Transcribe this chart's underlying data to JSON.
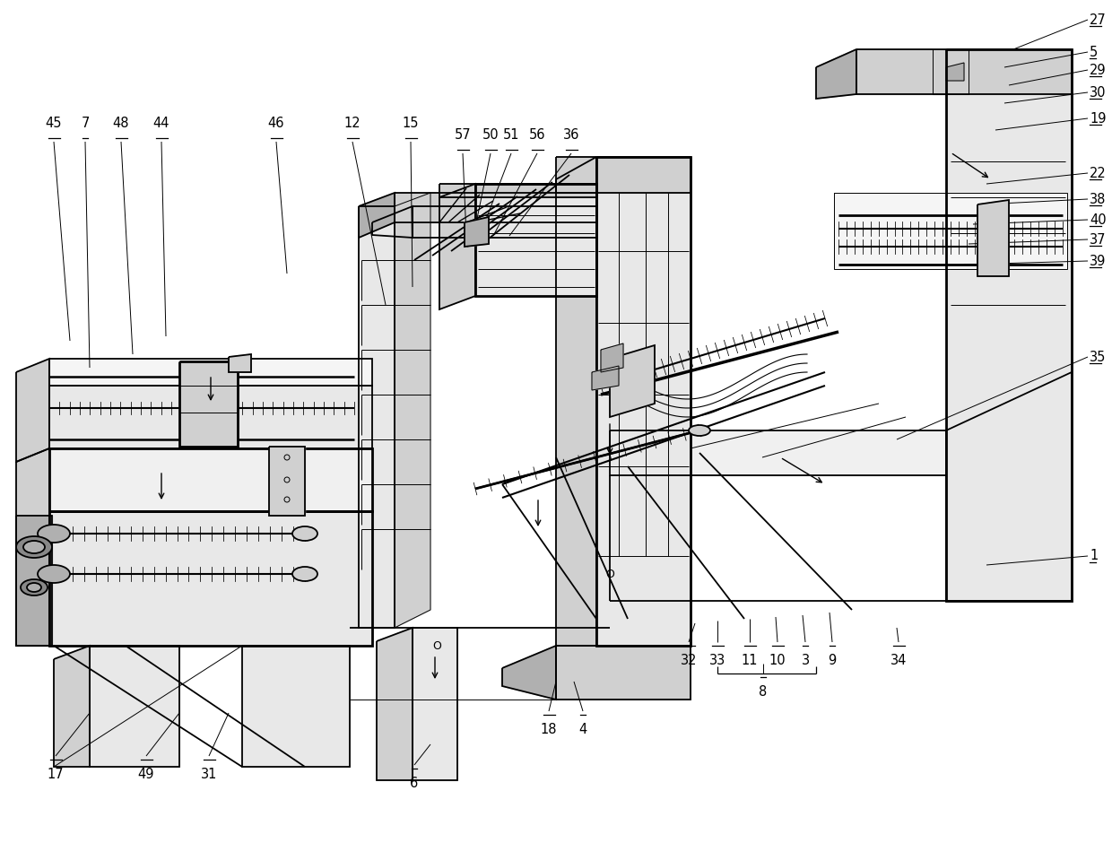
{
  "bg_color": "#ffffff",
  "line_color": "#000000",
  "figsize": [
    12.4,
    9.4
  ],
  "dpi": 100,
  "lw_main": 1.3,
  "lw_thick": 2.0,
  "lw_thin": 0.7,
  "gray_light": "#e8e8e8",
  "gray_mid": "#d0d0d0",
  "gray_dark": "#b0b0b0",
  "right_labels": [
    [
      "27",
      1215,
      22
    ],
    [
      "5",
      1215,
      58
    ],
    [
      "29",
      1215,
      78
    ],
    [
      "30",
      1215,
      103
    ],
    [
      "19",
      1215,
      132
    ],
    [
      "22",
      1215,
      193
    ],
    [
      "38",
      1215,
      222
    ],
    [
      "40",
      1215,
      245
    ],
    [
      "37",
      1215,
      267
    ],
    [
      "39",
      1215,
      291
    ],
    [
      "35",
      1215,
      398
    ],
    [
      "1",
      1215,
      620
    ]
  ],
  "top_labels": [
    [
      "45",
      60,
      158
    ],
    [
      "7",
      95,
      158
    ],
    [
      "48",
      135,
      158
    ],
    [
      "44",
      180,
      158
    ],
    [
      "46",
      308,
      158
    ],
    [
      "12",
      393,
      158
    ],
    [
      "15",
      458,
      158
    ],
    [
      "57",
      516,
      171
    ],
    [
      "50",
      547,
      171
    ],
    [
      "51",
      570,
      171
    ],
    [
      "56",
      599,
      171
    ],
    [
      "36",
      637,
      171
    ]
  ],
  "bottom_labels": [
    [
      "17",
      62,
      843
    ],
    [
      "49",
      163,
      843
    ],
    [
      "31",
      233,
      843
    ],
    [
      "6",
      462,
      853
    ],
    [
      "18",
      612,
      793
    ],
    [
      "4",
      650,
      793
    ],
    [
      "32",
      768,
      716
    ],
    [
      "33",
      800,
      716
    ],
    [
      "11",
      836,
      716
    ],
    [
      "10",
      867,
      716
    ],
    [
      "3",
      898,
      716
    ],
    [
      "9",
      928,
      716
    ],
    [
      "34",
      1002,
      716
    ],
    [
      "8",
      851,
      751
    ]
  ]
}
